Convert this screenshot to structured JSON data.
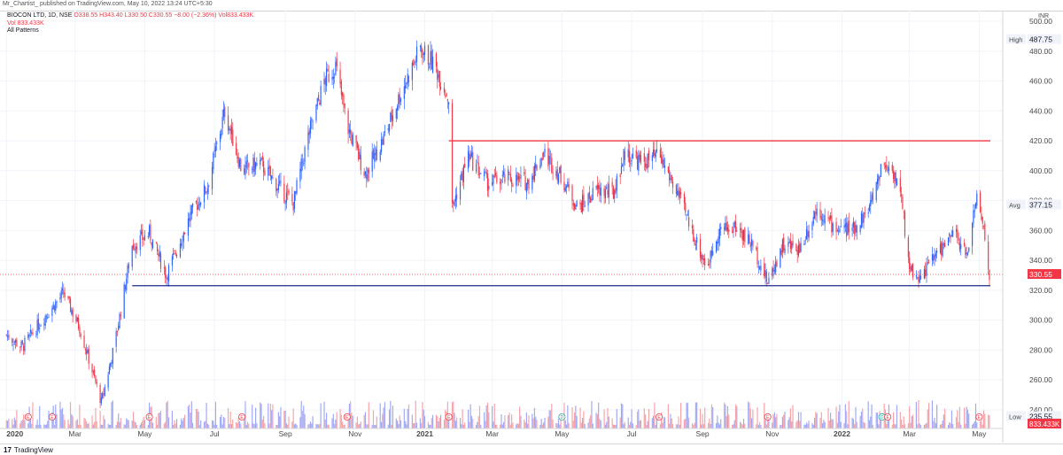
{
  "publish_line": "Mr_Chartist_ published on TradingView.com, May 10, 2022 13:24 UTC+5:30",
  "legend": {
    "symbol": "BIOCON LTD, 1D, NSE",
    "ohlc": "O338.55 H343.40 L330.50 C330.55 −8.00 (−2.36%) Vol833.433K",
    "vol": "Vol  833.433K",
    "study": "All Patterns"
  },
  "footer": {
    "logo_text": "TradingView",
    "logo_mark": "17"
  },
  "colors": {
    "up": "#2962ff",
    "down": "#f23645",
    "resistance": "#f23645",
    "support": "#1e2a8f",
    "last_price_line": "#f23645",
    "volume_up": "#9fa8f5",
    "volume_down": "#f5a3a8"
  },
  "chart_data": {
    "type": "candlestick",
    "title": "BIOCON LTD, 1D, NSE",
    "y_axis": {
      "unit": "INR",
      "range": [
        230,
        500
      ],
      "ticks": [
        "500.00",
        "480.00",
        "460.00",
        "440.00",
        "420.00",
        "400.00",
        "380.00",
        "360.00",
        "340.00",
        "320.00",
        "300.00",
        "280.00",
        "260.00",
        "240.00"
      ]
    },
    "x_axis": {
      "range": [
        "2019-12-31",
        "2022-05-10"
      ],
      "ticks": [
        {
          "label": "2020",
          "date": "2020-01-01"
        },
        {
          "label": "Mar",
          "date": "2020-03-01"
        },
        {
          "label": "May",
          "date": "2020-05-01"
        },
        {
          "label": "Jul",
          "date": "2020-07-01"
        },
        {
          "label": "Sep",
          "date": "2020-09-01"
        },
        {
          "label": "Nov",
          "date": "2020-11-01"
        },
        {
          "label": "2021",
          "date": "2021-01-01"
        },
        {
          "label": "Mar",
          "date": "2021-03-01"
        },
        {
          "label": "May",
          "date": "2021-05-01"
        },
        {
          "label": "Jul",
          "date": "2021-07-01"
        },
        {
          "label": "Sep",
          "date": "2021-09-01"
        },
        {
          "label": "Nov",
          "date": "2021-11-01"
        },
        {
          "label": "2022",
          "date": "2022-01-01"
        },
        {
          "label": "Mar",
          "date": "2022-03-01"
        },
        {
          "label": "May",
          "date": "2022-05-01"
        }
      ]
    },
    "price_path": [
      {
        "date": "2020-01-01",
        "close": 290
      },
      {
        "date": "2020-01-15",
        "close": 282
      },
      {
        "date": "2020-02-01",
        "close": 300
      },
      {
        "date": "2020-02-20",
        "close": 318
      },
      {
        "date": "2020-03-05",
        "close": 295
      },
      {
        "date": "2020-03-24",
        "close": 245
      },
      {
        "date": "2020-04-05",
        "close": 285
      },
      {
        "date": "2020-04-20",
        "close": 350
      },
      {
        "date": "2020-05-05",
        "close": 358
      },
      {
        "date": "2020-05-20",
        "close": 330
      },
      {
        "date": "2020-06-10",
        "close": 370
      },
      {
        "date": "2020-06-25",
        "close": 390
      },
      {
        "date": "2020-07-10",
        "close": 440
      },
      {
        "date": "2020-07-25",
        "close": 400
      },
      {
        "date": "2020-08-10",
        "close": 405
      },
      {
        "date": "2020-08-25",
        "close": 390
      },
      {
        "date": "2020-09-08",
        "close": 378
      },
      {
        "date": "2020-09-20",
        "close": 420
      },
      {
        "date": "2020-10-05",
        "close": 460
      },
      {
        "date": "2020-10-15",
        "close": 470
      },
      {
        "date": "2020-10-25",
        "close": 430
      },
      {
        "date": "2020-11-10",
        "close": 398
      },
      {
        "date": "2020-11-25",
        "close": 420
      },
      {
        "date": "2020-12-10",
        "close": 450
      },
      {
        "date": "2020-12-28",
        "close": 482
      },
      {
        "date": "2021-01-10",
        "close": 470
      },
      {
        "date": "2021-01-22",
        "close": 448
      },
      {
        "date": "2021-01-25",
        "close": 375
      },
      {
        "date": "2021-02-08",
        "close": 410
      },
      {
        "date": "2021-02-25",
        "close": 392
      },
      {
        "date": "2021-03-15",
        "close": 395
      },
      {
        "date": "2021-04-01",
        "close": 392
      },
      {
        "date": "2021-04-15",
        "close": 412
      },
      {
        "date": "2021-05-01",
        "close": 395
      },
      {
        "date": "2021-05-15",
        "close": 375
      },
      {
        "date": "2021-06-01",
        "close": 387
      },
      {
        "date": "2021-06-15",
        "close": 385
      },
      {
        "date": "2021-06-25",
        "close": 412
      },
      {
        "date": "2021-07-10",
        "close": 405
      },
      {
        "date": "2021-07-25",
        "close": 410
      },
      {
        "date": "2021-08-10",
        "close": 385
      },
      {
        "date": "2021-08-25",
        "close": 355
      },
      {
        "date": "2021-09-05",
        "close": 335
      },
      {
        "date": "2021-09-15",
        "close": 360
      },
      {
        "date": "2021-10-01",
        "close": 362
      },
      {
        "date": "2021-10-15",
        "close": 350
      },
      {
        "date": "2021-10-28",
        "close": 325
      },
      {
        "date": "2021-11-10",
        "close": 350
      },
      {
        "date": "2021-11-25",
        "close": 348
      },
      {
        "date": "2021-12-10",
        "close": 375
      },
      {
        "date": "2021-12-25",
        "close": 362
      },
      {
        "date": "2022-01-10",
        "close": 360
      },
      {
        "date": "2022-01-25",
        "close": 375
      },
      {
        "date": "2022-02-05",
        "close": 405
      },
      {
        "date": "2022-02-15",
        "close": 400
      },
      {
        "date": "2022-02-22",
        "close": 380
      },
      {
        "date": "2022-03-01",
        "close": 335
      },
      {
        "date": "2022-03-10",
        "close": 328
      },
      {
        "date": "2022-03-25",
        "close": 345
      },
      {
        "date": "2022-04-10",
        "close": 358
      },
      {
        "date": "2022-04-20",
        "close": 342
      },
      {
        "date": "2022-04-28",
        "close": 382
      },
      {
        "date": "2022-05-05",
        "close": 362
      },
      {
        "date": "2022-05-10",
        "close": 330.55
      }
    ],
    "high_low_markers": {
      "high": 487.75,
      "low": 235.55
    },
    "last_price": 330.55,
    "avg_price": 377.15,
    "last_volume_label": "833.433K",
    "axis_labels": {
      "high": "High",
      "low": "Low",
      "avg": "Avg"
    },
    "lines": [
      {
        "name": "resistance",
        "y": 420,
        "from": "2021-01-22",
        "to": "2022-05-15"
      },
      {
        "name": "support",
        "y": 323,
        "from": "2020-04-20",
        "to": "2022-05-15"
      }
    ],
    "event_markers": [
      {
        "date": "2020-01-20",
        "kind": "E"
      },
      {
        "date": "2020-02-10",
        "kind": "E"
      },
      {
        "date": "2020-05-05",
        "kind": "E"
      },
      {
        "date": "2020-07-25",
        "kind": "E"
      },
      {
        "date": "2020-10-25",
        "kind": "E"
      },
      {
        "date": "2021-01-22",
        "kind": "E"
      },
      {
        "date": "2021-05-01",
        "kind": "D"
      },
      {
        "date": "2021-07-25",
        "kind": "E"
      },
      {
        "date": "2021-10-28",
        "kind": "E"
      },
      {
        "date": "2022-02-05",
        "kind": "D"
      },
      {
        "date": "2022-02-10",
        "kind": "E"
      },
      {
        "date": "2022-05-01",
        "kind": "E"
      }
    ]
  }
}
